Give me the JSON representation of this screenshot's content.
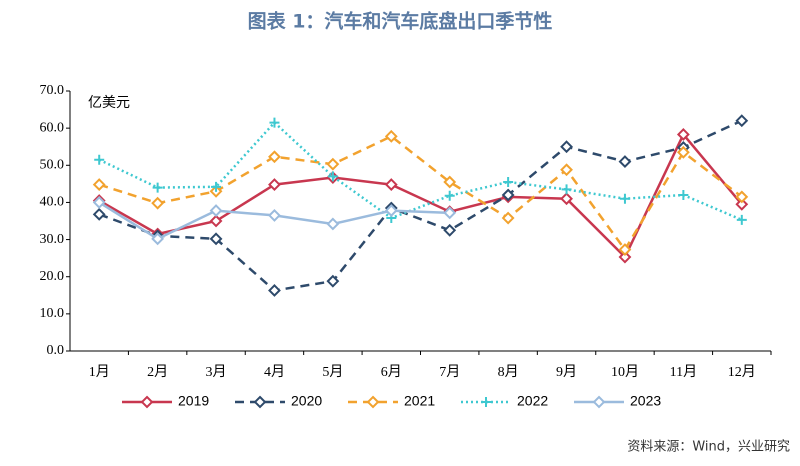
{
  "chart_data": {
    "type": "line",
    "title": "图表 1：汽车和汽车底盘出口季节性",
    "y_label": "亿美元",
    "source": "资料来源：Wind，兴业研究",
    "categories": [
      "1月",
      "2月",
      "3月",
      "4月",
      "5月",
      "6月",
      "7月",
      "8月",
      "9月",
      "10月",
      "11月",
      "12月"
    ],
    "series": [
      {
        "name": "2019",
        "color": "#c8374f",
        "linestyle": "solid",
        "marker": "diamond",
        "values": [
          40.5,
          31.5,
          35,
          44.8,
          46.7,
          44.8,
          37.5,
          41.5,
          41,
          25.3,
          58.3,
          39.5
        ]
      },
      {
        "name": "2020",
        "color": "#2e4a6b",
        "linestyle": "dashed",
        "marker": "diamond",
        "values": [
          36.8,
          31,
          30.2,
          16.3,
          18.8,
          38.5,
          32.5,
          42,
          55,
          51,
          54.8,
          62
        ]
      },
      {
        "name": "2021",
        "color": "#f2a22e",
        "linestyle": "dashed",
        "marker": "diamond",
        "values": [
          44.8,
          39.8,
          43,
          52.3,
          50.3,
          57.8,
          45.5,
          35.8,
          48.8,
          27.3,
          53.5,
          41.5
        ]
      },
      {
        "name": "2022",
        "color": "#3ec8d0",
        "linestyle": "dotted",
        "marker": "plus",
        "values": [
          51.5,
          44,
          44.2,
          61.5,
          47,
          35.8,
          41.8,
          45.5,
          43.5,
          41,
          42,
          35.3
        ]
      },
      {
        "name": "2023",
        "color": "#9bbbdd",
        "linestyle": "solid",
        "marker": "diamond",
        "values": [
          40,
          30.2,
          37.8,
          36.5,
          34.2,
          37.8,
          37.2,
          null,
          null,
          null,
          null,
          null
        ]
      }
    ],
    "ylim": [
      0,
      70
    ],
    "yticks": [
      {
        "value": 0,
        "label": "0.0"
      },
      {
        "value": 10,
        "label": "10.0"
      },
      {
        "value": 20,
        "label": "20.0"
      },
      {
        "value": 30,
        "label": "30.0"
      },
      {
        "value": 40,
        "label": "40.0"
      },
      {
        "value": 50,
        "label": "50.0"
      },
      {
        "value": 60,
        "label": "60.0"
      },
      {
        "value": 70,
        "label": "70.0"
      }
    ],
    "legend": "bottom"
  }
}
